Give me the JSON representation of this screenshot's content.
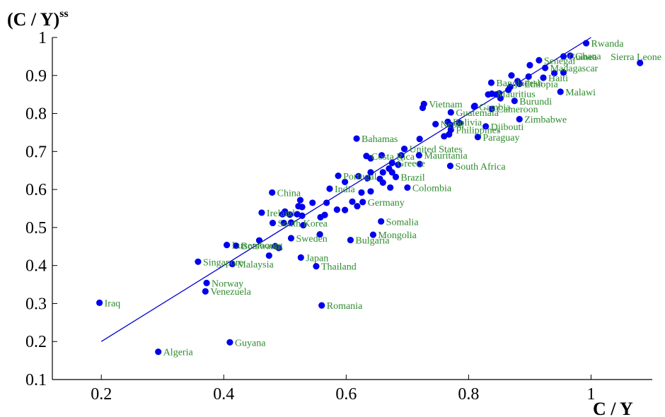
{
  "chart_data": {
    "type": "scatter",
    "xlabel": "C / Y",
    "ylabel": "(C / Y)",
    "ylabel_superscript": "ss",
    "xlim": [
      0.12,
      1.1
    ],
    "ylim": [
      0.1,
      1.0
    ],
    "xticks": [
      0.2,
      0.4,
      0.6,
      0.8,
      1
    ],
    "yticks": [
      0.1,
      0.2,
      0.3,
      0.4,
      0.5,
      0.6,
      0.7,
      0.8,
      0.9,
      1
    ],
    "grid": false,
    "point_color": "#0000ee",
    "label_color": "#2e8b2e",
    "fit_color": "#0000cc",
    "fit_line": {
      "x": [
        0.2,
        1.0
      ],
      "y": [
        0.2,
        1.0
      ]
    },
    "labeled_points": [
      {
        "name": "Rwanda",
        "x": 0.992,
        "y": 0.985
      },
      {
        "name": "Sierra Leone",
        "x": 1.08,
        "y": 0.933
      },
      {
        "name": "Ghana",
        "x": 0.966,
        "y": 0.952
      },
      {
        "name": "Guinea",
        "x": 0.955,
        "y": 0.95
      },
      {
        "name": "Senegal",
        "x": 0.915,
        "y": 0.94
      },
      {
        "name": "Madagascar",
        "x": 0.925,
        "y": 0.92
      },
      {
        "name": "Haiti",
        "x": 0.922,
        "y": 0.894
      },
      {
        "name": "Ethiopia",
        "x": 0.883,
        "y": 0.878
      },
      {
        "name": "Malawi",
        "x": 0.95,
        "y": 0.857
      },
      {
        "name": "Bangladesh",
        "x": 0.837,
        "y": 0.881
      },
      {
        "name": "Mauritius",
        "x": 0.838,
        "y": 0.852
      },
      {
        "name": "Burundi",
        "x": 0.875,
        "y": 0.833
      },
      {
        "name": "Vietnam",
        "x": 0.727,
        "y": 0.825
      },
      {
        "name": "Gambia",
        "x": 0.809,
        "y": 0.818
      },
      {
        "name": "Cameroon",
        "x": 0.838,
        "y": 0.812
      },
      {
        "name": "Guatemala",
        "x": 0.771,
        "y": 0.803
      },
      {
        "name": "Zimbabwe",
        "x": 0.883,
        "y": 0.785
      },
      {
        "name": "Bolivia",
        "x": 0.766,
        "y": 0.778
      },
      {
        "name": "Djibouti",
        "x": 0.828,
        "y": 0.766
      },
      {
        "name": "Nepal",
        "x": 0.746,
        "y": 0.772
      },
      {
        "name": "Philippines",
        "x": 0.771,
        "y": 0.757
      },
      {
        "name": "Paraguay",
        "x": 0.815,
        "y": 0.738
      },
      {
        "name": "Bahamas",
        "x": 0.617,
        "y": 0.734
      },
      {
        "name": "United States",
        "x": 0.695,
        "y": 0.707
      },
      {
        "name": "Costa Rica",
        "x": 0.633,
        "y": 0.688
      },
      {
        "name": "Mauritania",
        "x": 0.719,
        "y": 0.69
      },
      {
        "name": "Portugal",
        "x": 0.587,
        "y": 0.636
      },
      {
        "name": "Greece",
        "x": 0.675,
        "y": 0.67
      },
      {
        "name": "South Africa",
        "x": 0.77,
        "y": 0.662
      },
      {
        "name": "Brazil",
        "x": 0.681,
        "y": 0.633
      },
      {
        "name": "India",
        "x": 0.573,
        "y": 0.602
      },
      {
        "name": "Colombia",
        "x": 0.7,
        "y": 0.605
      },
      {
        "name": "China",
        "x": 0.479,
        "y": 0.592
      },
      {
        "name": "Ireland",
        "x": 0.462,
        "y": 0.539
      },
      {
        "name": "Germany",
        "x": 0.627,
        "y": 0.567
      },
      {
        "name": "South Korea",
        "x": 0.48,
        "y": 0.512
      },
      {
        "name": "Somalia",
        "x": 0.657,
        "y": 0.516
      },
      {
        "name": "Luxembourg",
        "x": 0.405,
        "y": 0.454
      },
      {
        "name": "Sweden",
        "x": 0.51,
        "y": 0.472
      },
      {
        "name": "Mongolia",
        "x": 0.644,
        "y": 0.481
      },
      {
        "name": "Botswana",
        "x": 0.42,
        "y": 0.452
      },
      {
        "name": "Bulgaria",
        "x": 0.607,
        "y": 0.467
      },
      {
        "name": "Singapore",
        "x": 0.358,
        "y": 0.41
      },
      {
        "name": "Japan",
        "x": 0.526,
        "y": 0.421
      },
      {
        "name": "Malaysia",
        "x": 0.414,
        "y": 0.404
      },
      {
        "name": "Thailand",
        "x": 0.551,
        "y": 0.398
      },
      {
        "name": "Norway",
        "x": 0.372,
        "y": 0.354
      },
      {
        "name": "Venezuela",
        "x": 0.37,
        "y": 0.332
      },
      {
        "name": "Iraq",
        "x": 0.197,
        "y": 0.302
      },
      {
        "name": "Romania",
        "x": 0.56,
        "y": 0.295
      },
      {
        "name": "Guyana",
        "x": 0.41,
        "y": 0.198
      },
      {
        "name": "Algeria",
        "x": 0.293,
        "y": 0.173
      }
    ],
    "other_points": [
      {
        "x": 0.9,
        "y": 0.927
      },
      {
        "x": 0.87,
        "y": 0.9
      },
      {
        "x": 0.898,
        "y": 0.897
      },
      {
        "x": 0.955,
        "y": 0.908
      },
      {
        "x": 0.94,
        "y": 0.906
      },
      {
        "x": 0.88,
        "y": 0.885
      },
      {
        "x": 0.868,
        "y": 0.87
      },
      {
        "x": 0.865,
        "y": 0.862
      },
      {
        "x": 0.85,
        "y": 0.853
      },
      {
        "x": 0.845,
        "y": 0.85
      },
      {
        "x": 0.832,
        "y": 0.85
      },
      {
        "x": 0.852,
        "y": 0.84
      },
      {
        "x": 0.81,
        "y": 0.82
      },
      {
        "x": 0.725,
        "y": 0.815
      },
      {
        "x": 0.785,
        "y": 0.775
      },
      {
        "x": 0.77,
        "y": 0.77
      },
      {
        "x": 0.76,
        "y": 0.74
      },
      {
        "x": 0.768,
        "y": 0.745
      },
      {
        "x": 0.72,
        "y": 0.733
      },
      {
        "x": 0.658,
        "y": 0.69
      },
      {
        "x": 0.64,
        "y": 0.682
      },
      {
        "x": 0.69,
        "y": 0.69
      },
      {
        "x": 0.72,
        "y": 0.667
      },
      {
        "x": 0.685,
        "y": 0.665
      },
      {
        "x": 0.67,
        "y": 0.655
      },
      {
        "x": 0.66,
        "y": 0.645
      },
      {
        "x": 0.64,
        "y": 0.645
      },
      {
        "x": 0.635,
        "y": 0.63
      },
      {
        "x": 0.62,
        "y": 0.635
      },
      {
        "x": 0.655,
        "y": 0.628
      },
      {
        "x": 0.675,
        "y": 0.645
      },
      {
        "x": 0.598,
        "y": 0.62
      },
      {
        "x": 0.66,
        "y": 0.618
      },
      {
        "x": 0.672,
        "y": 0.605
      },
      {
        "x": 0.64,
        "y": 0.595
      },
      {
        "x": 0.625,
        "y": 0.592
      },
      {
        "x": 0.61,
        "y": 0.568
      },
      {
        "x": 0.618,
        "y": 0.556
      },
      {
        "x": 0.598,
        "y": 0.546
      },
      {
        "x": 0.585,
        "y": 0.547
      },
      {
        "x": 0.568,
        "y": 0.565
      },
      {
        "x": 0.545,
        "y": 0.565
      },
      {
        "x": 0.525,
        "y": 0.572
      },
      {
        "x": 0.522,
        "y": 0.556
      },
      {
        "x": 0.528,
        "y": 0.554
      },
      {
        "x": 0.5,
        "y": 0.542
      },
      {
        "x": 0.508,
        "y": 0.534
      },
      {
        "x": 0.496,
        "y": 0.535
      },
      {
        "x": 0.52,
        "y": 0.535
      },
      {
        "x": 0.528,
        "y": 0.531
      },
      {
        "x": 0.565,
        "y": 0.533
      },
      {
        "x": 0.558,
        "y": 0.527
      },
      {
        "x": 0.498,
        "y": 0.512
      },
      {
        "x": 0.51,
        "y": 0.513
      },
      {
        "x": 0.53,
        "y": 0.506
      },
      {
        "x": 0.557,
        "y": 0.482
      },
      {
        "x": 0.458,
        "y": 0.466
      },
      {
        "x": 0.49,
        "y": 0.446
      },
      {
        "x": 0.484,
        "y": 0.451
      },
      {
        "x": 0.474,
        "y": 0.426
      }
    ]
  }
}
